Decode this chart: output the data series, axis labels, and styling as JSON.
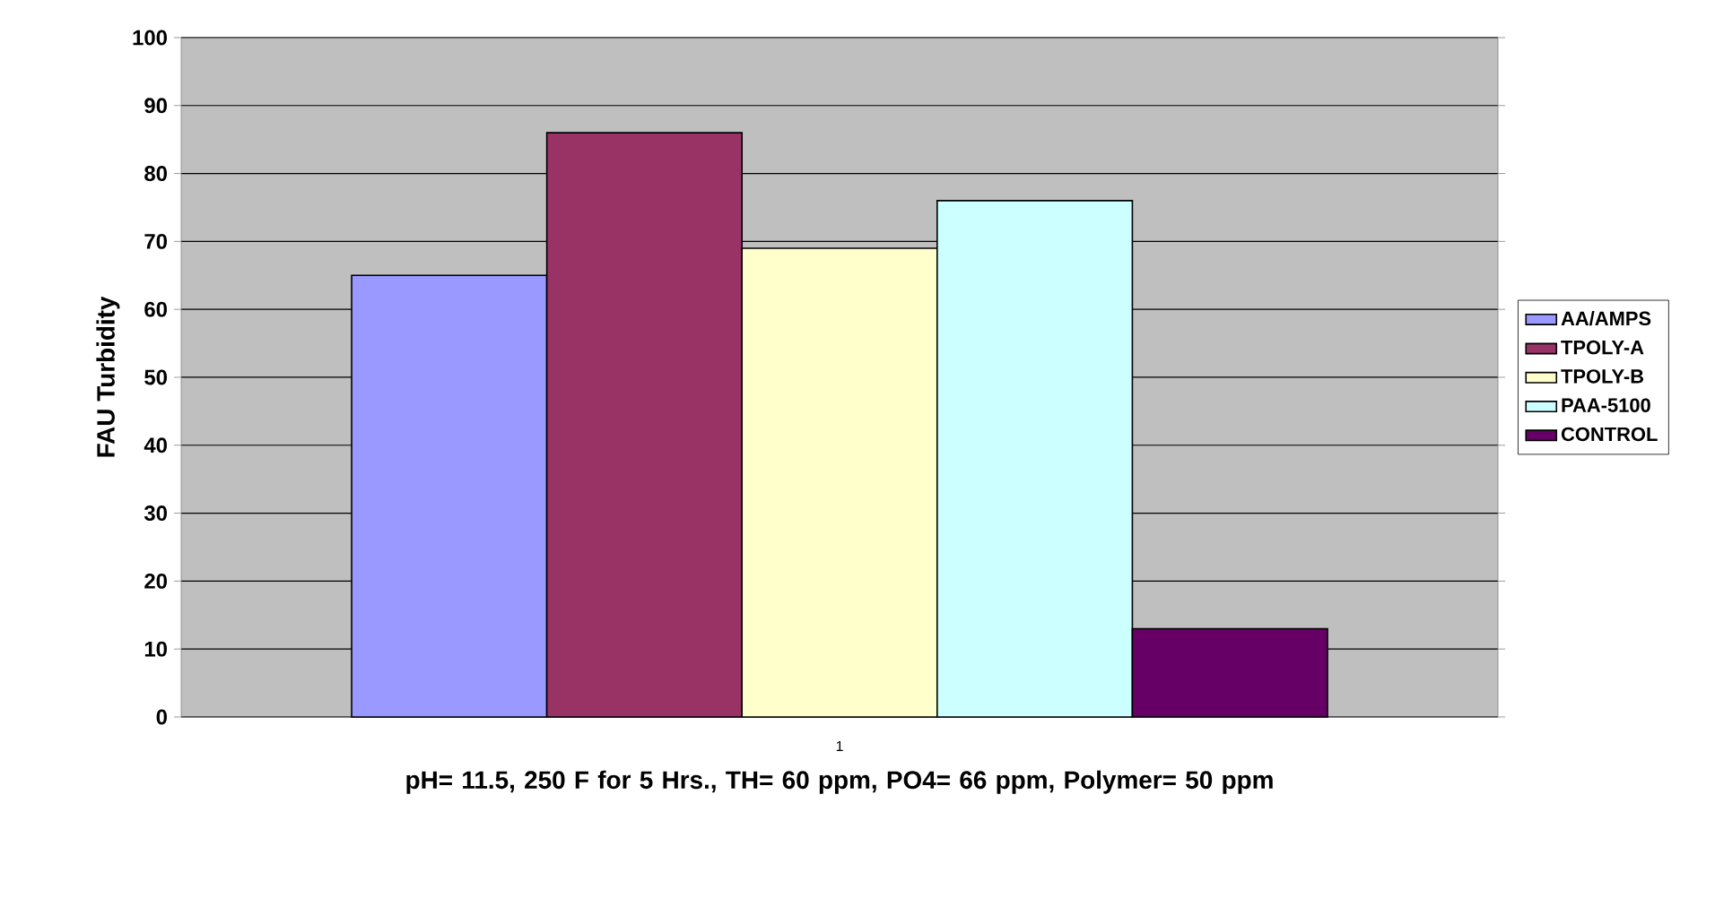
{
  "chart_data": {
    "type": "bar",
    "xlabel": "pH= 11.5, 250 F for 5 Hrs., TH= 60 ppm, PO4= 66 ppm, Polymer= 50 ppm",
    "ylabel": "FAU Turbidity",
    "categories": [
      "1"
    ],
    "series": [
      {
        "name": "AA/AMPS",
        "color": "#9999ff",
        "values": [
          65
        ]
      },
      {
        "name": "TPOLY-A",
        "color": "#993366",
        "values": [
          86
        ]
      },
      {
        "name": "TPOLY-B",
        "color": "#ffffcc",
        "values": [
          69
        ]
      },
      {
        "name": "PAA-5100",
        "color": "#ccffff",
        "values": [
          76
        ]
      },
      {
        "name": "CONTROL",
        "color": "#660066",
        "values": [
          13
        ]
      }
    ],
    "ylim": [
      0,
      100
    ],
    "yticks": [
      0,
      10,
      20,
      30,
      40,
      50,
      60,
      70,
      80,
      90,
      100
    ],
    "grid": "y",
    "legend": "right"
  }
}
